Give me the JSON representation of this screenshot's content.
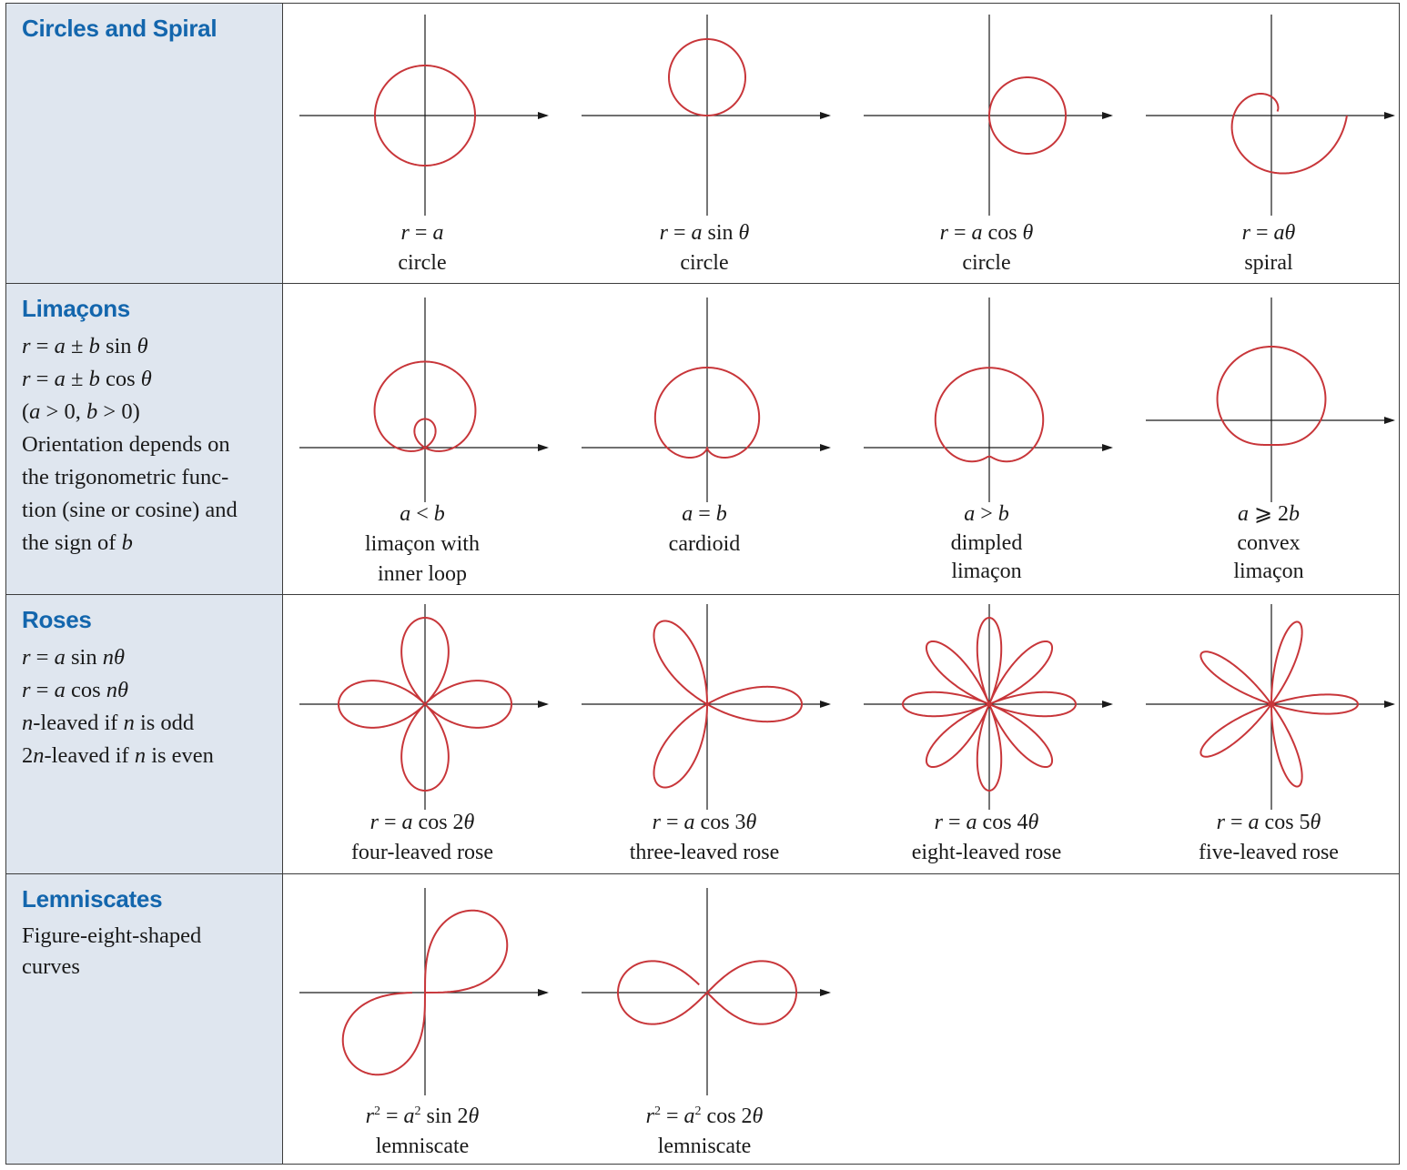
{
  "rows": [
    {
      "id": "circles",
      "category": "Circles and Spiral",
      "description": [],
      "curves": [
        {
          "id": "circle-a",
          "equation": "r = a",
          "name": [
            "circle"
          ],
          "kind": "circle_const"
        },
        {
          "id": "circle-sin",
          "equation": "r = a sin θ",
          "name": [
            "circle"
          ],
          "kind": "circle_sin"
        },
        {
          "id": "circle-cos",
          "equation": "r = a cos θ",
          "name": [
            "circle"
          ],
          "kind": "circle_cos"
        },
        {
          "id": "spiral",
          "equation": "r = aθ",
          "name": [
            "spiral"
          ],
          "kind": "spiral"
        }
      ]
    },
    {
      "id": "limacons",
      "category": "Limaçons",
      "description": [
        "r = a ± b sin θ",
        "r = a ± b cos θ",
        "(a > 0, b > 0)",
        "Orientation depends on",
        "the trigonometric func-",
        "tion (sine or cosine) and",
        "the sign of b"
      ],
      "curves": [
        {
          "id": "limacon-loop",
          "equation": "a < b",
          "name": [
            "limaçon with",
            "inner loop"
          ],
          "kind": "limacon",
          "a": 0.5,
          "b": 1
        },
        {
          "id": "cardioid",
          "equation": "a = b",
          "name": [
            "cardioid"
          ],
          "kind": "limacon",
          "a": 1,
          "b": 1
        },
        {
          "id": "dimpled",
          "equation": "a > b",
          "name": [
            "dimpled",
            "limaçon"
          ],
          "kind": "limacon",
          "a": 1.25,
          "b": 1
        },
        {
          "id": "convex",
          "equation": "a ⩾ 2b",
          "name": [
            "convex",
            "limaçon"
          ],
          "kind": "limacon",
          "a": 2,
          "b": 1
        }
      ]
    },
    {
      "id": "roses",
      "category": "Roses",
      "description": [
        "r = a sin nθ",
        "r = a cos nθ",
        "n-leaved if n is odd",
        "2n-leaved if n is even"
      ],
      "curves": [
        {
          "id": "rose-2",
          "equation": "r = a cos 2θ",
          "name": [
            "four-leaved rose"
          ],
          "kind": "rose",
          "n": 2
        },
        {
          "id": "rose-3",
          "equation": "r = a cos 3θ",
          "name": [
            "three-leaved rose"
          ],
          "kind": "rose",
          "n": 3
        },
        {
          "id": "rose-4",
          "equation": "r = a cos 4θ",
          "name": [
            "eight-leaved rose"
          ],
          "kind": "rose",
          "n": 4
        },
        {
          "id": "rose-5",
          "equation": "r = a cos 5θ",
          "name": [
            "five-leaved rose"
          ],
          "kind": "rose",
          "n": 5
        }
      ]
    },
    {
      "id": "lemniscates",
      "category": "Lemniscates",
      "description": [
        "Figure-eight-shaped",
        "curves"
      ],
      "curves": [
        {
          "id": "lemniscate-sin",
          "equation": "r² = a² sin 2θ",
          "name": [
            "lemniscate"
          ],
          "kind": "lemniscate_sin"
        },
        {
          "id": "lemniscate-cos",
          "equation": "r² = a² cos 2θ",
          "name": [
            "lemniscate"
          ],
          "kind": "lemniscate_cos"
        }
      ]
    }
  ],
  "colors": {
    "curve": "#c8363a",
    "axis": "#1a1a1a",
    "sidebar": "#dfe6ef",
    "heading": "#1366ad"
  }
}
